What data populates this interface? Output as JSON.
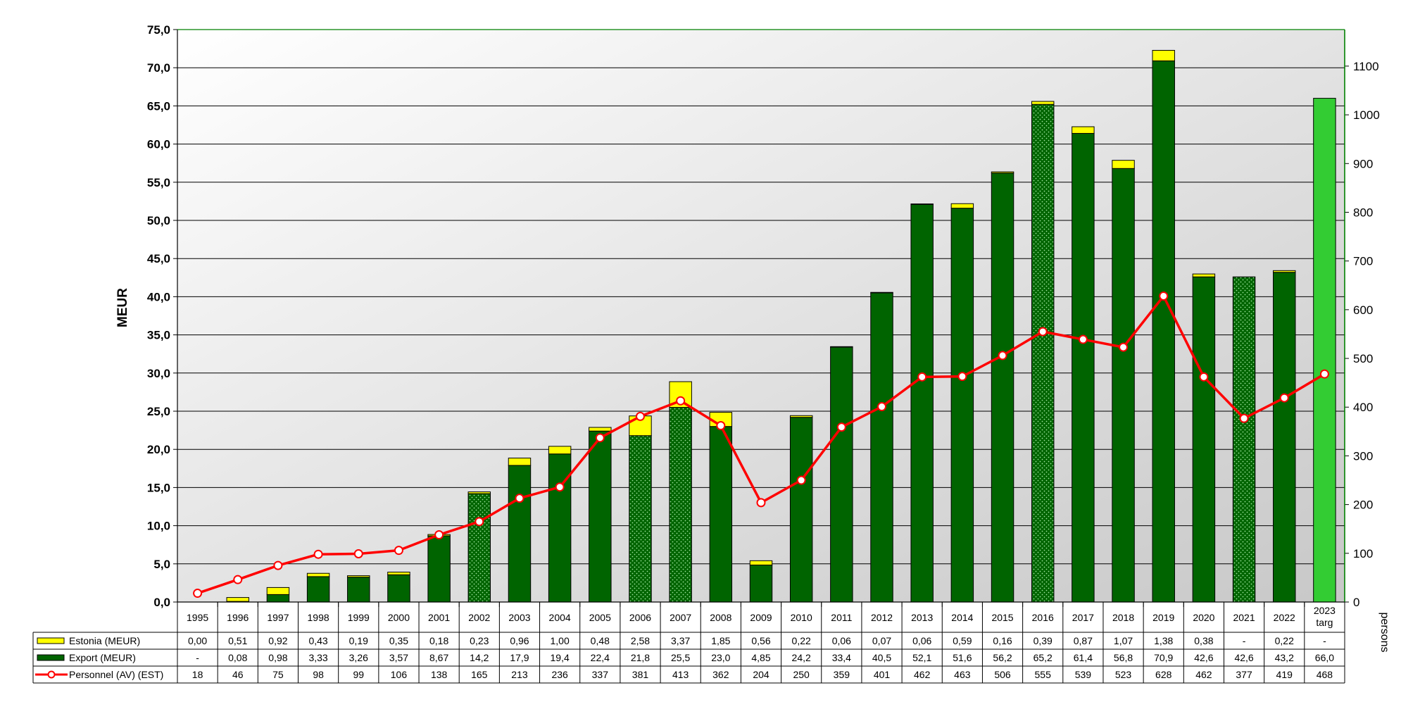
{
  "chart_data": {
    "type": "bar",
    "stacked": true,
    "categories": [
      "1995",
      "1996",
      "1997",
      "1998",
      "1999",
      "2000",
      "2001",
      "2002",
      "2003",
      "2004",
      "2005",
      "2006",
      "2007",
      "2008",
      "2009",
      "2010",
      "2011",
      "2012",
      "2013",
      "2014",
      "2015",
      "2016",
      "2017",
      "2018",
      "2019",
      "2020",
      "2021",
      "2022",
      "2023 targ"
    ],
    "series": [
      {
        "name": "Export (MEUR)",
        "axis": "left",
        "kind": "bar",
        "values": [
          0,
          0.08,
          0.98,
          3.33,
          3.26,
          3.57,
          8.67,
          14.2,
          17.9,
          19.4,
          22.4,
          21.8,
          25.5,
          23.0,
          4.85,
          24.2,
          33.4,
          40.5,
          52.1,
          51.6,
          56.2,
          65.2,
          61.4,
          56.8,
          70.9,
          42.6,
          42.6,
          43.2,
          66.0
        ],
        "labels": [
          "-",
          "0,08",
          "0,98",
          "3,33",
          "3,26",
          "3,57",
          "8,67",
          "14,2",
          "17,9",
          "19,4",
          "22,4",
          "21,8",
          "25,5",
          "23,0",
          "4,85",
          "24,2",
          "33,4",
          "40,5",
          "52,1",
          "51,6",
          "56,2",
          "65,2",
          "61,4",
          "56,8",
          "70,9",
          "42,6",
          "42,6",
          "43,2",
          "66,0"
        ],
        "color": "#006400"
      },
      {
        "name": "Estonia (MEUR)",
        "axis": "left",
        "kind": "bar",
        "values": [
          0,
          0.51,
          0.92,
          0.43,
          0.19,
          0.35,
          0.18,
          0.23,
          0.96,
          1.0,
          0.48,
          2.58,
          3.37,
          1.85,
          0.56,
          0.22,
          0.06,
          0.07,
          0.06,
          0.59,
          0.16,
          0.39,
          0.87,
          1.07,
          1.38,
          0.38,
          0,
          0.22,
          0
        ],
        "labels": [
          "0,00",
          "0,51",
          "0,92",
          "0,43",
          "0,19",
          "0,35",
          "0,18",
          "0,23",
          "0,96",
          "1,00",
          "0,48",
          "2,58",
          "3,37",
          "1,85",
          "0,56",
          "0,22",
          "0,06",
          "0,07",
          "0,06",
          "0,59",
          "0,16",
          "0,39",
          "0,87",
          "1,07",
          "1,38",
          "0,38",
          "-",
          "0,22",
          "-"
        ],
        "color": "#ffff00"
      },
      {
        "name": "Personnel (AV) (EST)",
        "axis": "right",
        "kind": "line",
        "values": [
          18,
          46,
          75,
          98,
          99,
          106,
          138,
          165,
          213,
          236,
          337,
          381,
          413,
          362,
          204,
          250,
          359,
          401,
          462,
          463,
          506,
          555,
          539,
          523,
          628,
          462,
          377,
          419,
          468
        ],
        "labels": [
          "18",
          "46",
          "75",
          "98",
          "99",
          "106",
          "138",
          "165",
          "213",
          "236",
          "337",
          "381",
          "413",
          "362",
          "204",
          "250",
          "359",
          "401",
          "462",
          "463",
          "506",
          "555",
          "539",
          "523",
          "628",
          "462",
          "377",
          "419",
          "468"
        ],
        "color": "#ff0000"
      }
    ],
    "dotted_bars": [
      "2002",
      "2006",
      "2007",
      "2016",
      "2021"
    ],
    "target_bar": {
      "category": "2023 targ",
      "color": "#33cc33"
    },
    "ylabel": "MEUR",
    "ylabel_right": "persons",
    "ylim": [
      0,
      75
    ],
    "ylim_right": [
      0,
      1175
    ],
    "yticks": [
      "0,0",
      "5,0",
      "10,0",
      "15,0",
      "20,0",
      "25,0",
      "30,0",
      "35,0",
      "40,0",
      "45,0",
      "50,0",
      "55,0",
      "60,0",
      "65,0",
      "70,0",
      "75,0"
    ],
    "yticks_right": [
      "0",
      "100",
      "200",
      "300",
      "400",
      "500",
      "600",
      "700",
      "800",
      "900",
      "1000",
      "1100"
    ],
    "grid": true,
    "legend": "table-below",
    "colors": {
      "export": "#006400",
      "estonia": "#ffff00",
      "personnel": "#ff0000",
      "target": "#33cc33",
      "axis_right": "#008000"
    }
  }
}
